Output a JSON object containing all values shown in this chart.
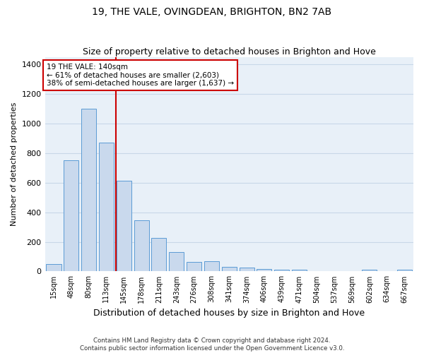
{
  "title": "19, THE VALE, OVINGDEAN, BRIGHTON, BN2 7AB",
  "subtitle": "Size of property relative to detached houses in Brighton and Hove",
  "xlabel": "Distribution of detached houses by size in Brighton and Hove",
  "ylabel": "Number of detached properties",
  "footer_line1": "Contains HM Land Registry data © Crown copyright and database right 2024.",
  "footer_line2": "Contains public sector information licensed under the Open Government Licence v3.0.",
  "categories": [
    "15sqm",
    "48sqm",
    "80sqm",
    "113sqm",
    "145sqm",
    "178sqm",
    "211sqm",
    "243sqm",
    "276sqm",
    "308sqm",
    "341sqm",
    "374sqm",
    "406sqm",
    "439sqm",
    "471sqm",
    "504sqm",
    "537sqm",
    "569sqm",
    "602sqm",
    "634sqm",
    "667sqm"
  ],
  "values": [
    52,
    750,
    1100,
    870,
    615,
    345,
    225,
    130,
    62,
    68,
    30,
    25,
    15,
    12,
    10,
    2,
    0,
    0,
    10,
    0,
    10
  ],
  "bar_color": "#c9d9ed",
  "bar_edge_color": "#5b9bd5",
  "grid_color": "#c8d8e8",
  "background_color": "#e8f0f8",
  "property_line_index": 4,
  "annotation_line1": "19 THE VALE: 140sqm",
  "annotation_line2": "← 61% of detached houses are smaller (2,603)",
  "annotation_line3": "38% of semi-detached houses are larger (1,637) →",
  "vline_color": "#cc0000",
  "annotation_box_edge_color": "#cc0000",
  "ylim": [
    0,
    1450
  ],
  "yticks": [
    0,
    200,
    400,
    600,
    800,
    1000,
    1200,
    1400
  ]
}
